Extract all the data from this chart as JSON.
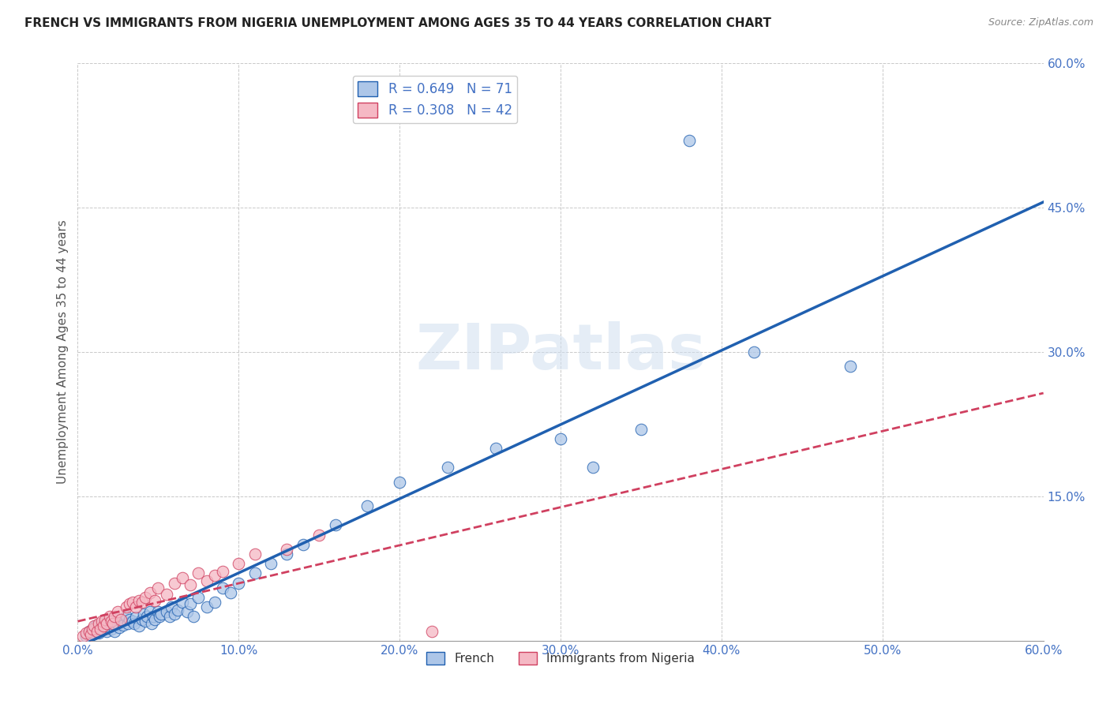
{
  "title": "FRENCH VS IMMIGRANTS FROM NIGERIA UNEMPLOYMENT AMONG AGES 35 TO 44 YEARS CORRELATION CHART",
  "source": "Source: ZipAtlas.com",
  "ylabel": "Unemployment Among Ages 35 to 44 years",
  "xlim": [
    0.0,
    0.6
  ],
  "ylim": [
    0.0,
    0.6
  ],
  "xticks": [
    0.0,
    0.1,
    0.2,
    0.3,
    0.4,
    0.5,
    0.6
  ],
  "yticks": [
    0.0,
    0.15,
    0.3,
    0.45,
    0.6
  ],
  "ytick_labels": [
    "",
    "15.0%",
    "30.0%",
    "45.0%",
    "60.0%"
  ],
  "xtick_labels": [
    "0.0%",
    "10.0%",
    "20.0%",
    "30.0%",
    "40.0%",
    "50.0%",
    "60.0%"
  ],
  "french_R": 0.649,
  "french_N": 71,
  "nigeria_R": 0.308,
  "nigeria_N": 42,
  "french_color": "#adc6e8",
  "nigeria_color": "#f5b8c4",
  "french_line_color": "#2060b0",
  "nigeria_line_color": "#d04060",
  "watermark_color": "#d0dff0",
  "tick_color": "#4472c4",
  "title_color": "#222222",
  "source_color": "#888888",
  "french_x": [
    0.005,
    0.007,
    0.008,
    0.01,
    0.01,
    0.011,
    0.012,
    0.013,
    0.014,
    0.015,
    0.016,
    0.017,
    0.018,
    0.019,
    0.02,
    0.021,
    0.022,
    0.023,
    0.024,
    0.025,
    0.026,
    0.027,
    0.028,
    0.03,
    0.031,
    0.032,
    0.034,
    0.035,
    0.036,
    0.038,
    0.04,
    0.041,
    0.042,
    0.043,
    0.045,
    0.046,
    0.047,
    0.048,
    0.05,
    0.051,
    0.052,
    0.055,
    0.057,
    0.058,
    0.06,
    0.062,
    0.065,
    0.068,
    0.07,
    0.072,
    0.075,
    0.08,
    0.085,
    0.09,
    0.095,
    0.1,
    0.11,
    0.12,
    0.13,
    0.14,
    0.16,
    0.18,
    0.2,
    0.23,
    0.26,
    0.3,
    0.32,
    0.35,
    0.38,
    0.42,
    0.48
  ],
  "french_y": [
    0.005,
    0.01,
    0.008,
    0.012,
    0.007,
    0.015,
    0.01,
    0.008,
    0.014,
    0.012,
    0.018,
    0.015,
    0.01,
    0.02,
    0.015,
    0.012,
    0.018,
    0.01,
    0.022,
    0.017,
    0.014,
    0.02,
    0.016,
    0.025,
    0.018,
    0.022,
    0.02,
    0.018,
    0.024,
    0.015,
    0.022,
    0.028,
    0.02,
    0.025,
    0.03,
    0.018,
    0.025,
    0.022,
    0.03,
    0.025,
    0.028,
    0.03,
    0.025,
    0.035,
    0.028,
    0.032,
    0.04,
    0.03,
    0.038,
    0.025,
    0.045,
    0.035,
    0.04,
    0.055,
    0.05,
    0.06,
    0.07,
    0.08,
    0.09,
    0.1,
    0.12,
    0.14,
    0.165,
    0.18,
    0.2,
    0.21,
    0.18,
    0.22,
    0.52,
    0.3,
    0.285
  ],
  "nigeria_x": [
    0.003,
    0.005,
    0.007,
    0.008,
    0.009,
    0.01,
    0.012,
    0.013,
    0.014,
    0.015,
    0.016,
    0.017,
    0.018,
    0.02,
    0.021,
    0.022,
    0.023,
    0.025,
    0.027,
    0.03,
    0.032,
    0.034,
    0.036,
    0.038,
    0.04,
    0.042,
    0.045,
    0.048,
    0.05,
    0.055,
    0.06,
    0.065,
    0.07,
    0.075,
    0.08,
    0.085,
    0.09,
    0.1,
    0.11,
    0.13,
    0.15,
    0.22
  ],
  "nigeria_y": [
    0.005,
    0.008,
    0.01,
    0.006,
    0.012,
    0.015,
    0.01,
    0.018,
    0.012,
    0.02,
    0.015,
    0.022,
    0.018,
    0.025,
    0.02,
    0.018,
    0.025,
    0.03,
    0.022,
    0.035,
    0.038,
    0.04,
    0.035,
    0.042,
    0.04,
    0.045,
    0.05,
    0.042,
    0.055,
    0.048,
    0.06,
    0.065,
    0.058,
    0.07,
    0.062,
    0.068,
    0.072,
    0.08,
    0.09,
    0.095,
    0.11,
    0.01
  ]
}
